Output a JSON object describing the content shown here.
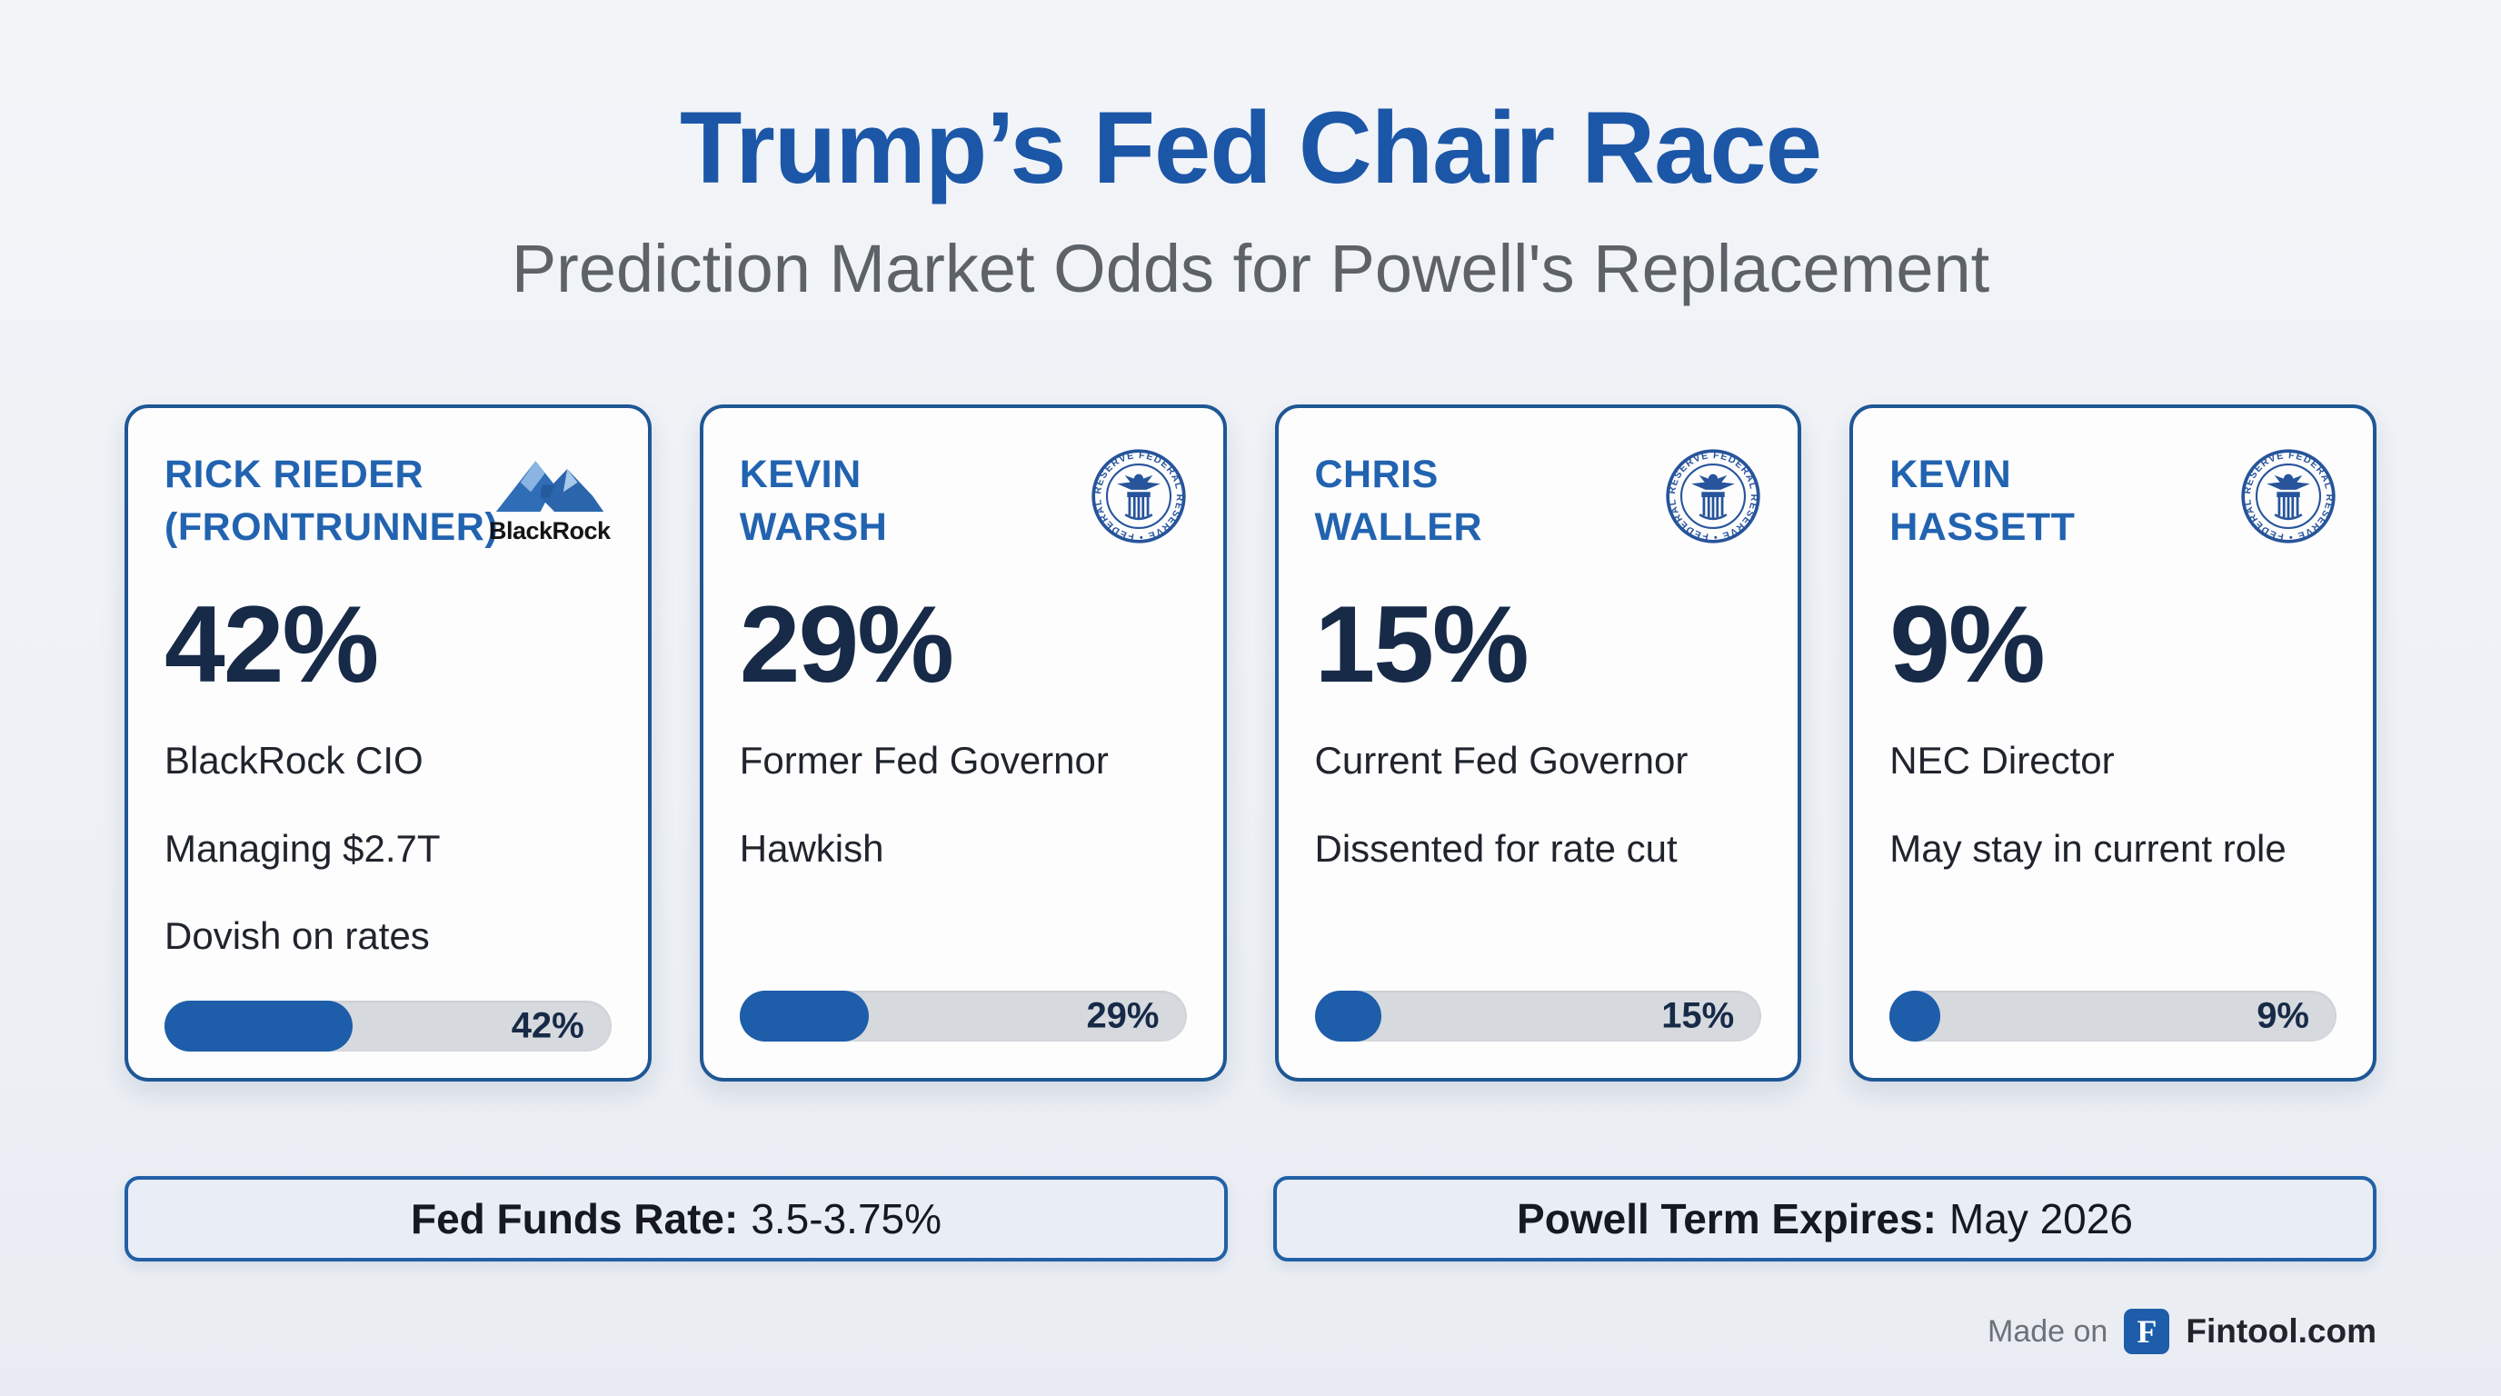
{
  "header": {
    "title": "Trump’s Fed Chair Race",
    "subtitle": "Prediction Market Odds for Powell's Replacement"
  },
  "cards": [
    {
      "name_lines": [
        "RICK RIEDER",
        "(FRONTRUNNER)"
      ],
      "logo": "blackrock",
      "logo_text": "BlackRock",
      "percent": "42%",
      "percent_value": 42,
      "details": [
        "BlackRock CIO",
        "Managing $2.7T",
        "Dovish on rates"
      ],
      "bar_label": "42%"
    },
    {
      "name_lines": [
        "KEVIN",
        "WARSH"
      ],
      "logo": "federal-reserve-seal",
      "percent": "29%",
      "percent_value": 29,
      "details": [
        "Former Fed Governor",
        "Hawkish"
      ],
      "bar_label": "29%"
    },
    {
      "name_lines": [
        "CHRIS",
        "WALLER"
      ],
      "logo": "federal-reserve-seal",
      "percent": "15%",
      "percent_value": 15,
      "details": [
        "Current Fed Governor",
        "Dissented for rate cut"
      ],
      "bar_label": "15%"
    },
    {
      "name_lines": [
        "KEVIN",
        "HASSETT"
      ],
      "logo": "federal-reserve-seal",
      "percent": "9%",
      "percent_value": 9,
      "details": [
        "NEC Director",
        "May stay in current role"
      ],
      "bar_label": "9%"
    }
  ],
  "seal": {
    "ring_text": "FEDERAL RESERVE • FEDERAL RESERVE SYSTEM •"
  },
  "footnotes": [
    {
      "label": "Fed Funds Rate:",
      "value": "3.5-3.75%"
    },
    {
      "label": "Powell Term Expires:",
      "value": "May 2026"
    }
  ],
  "footer": {
    "made_on": "Made on",
    "badge_letter": "F",
    "brand": "Fintool.com"
  },
  "colors": {
    "title_blue": "#1c56a7",
    "name_blue": "#2263b0",
    "navy": "#172a47",
    "card_border": "#1f5795",
    "bar_fill": "#1d5da9",
    "bar_track": "#d6d9de",
    "note_bg": "#e8edf6",
    "note_border": "#2160a6",
    "background": "#eef1f5"
  },
  "chart_data": {
    "type": "bar",
    "title": "Trump’s Fed Chair Race",
    "subtitle": "Prediction Market Odds for Powell's Replacement",
    "categories": [
      "Rick Rieder (Frontrunner)",
      "Kevin Warsh",
      "Chris Waller",
      "Kevin Hassett"
    ],
    "values": [
      42,
      29,
      15,
      9
    ],
    "unit": "%",
    "xlim": [
      0,
      100
    ],
    "category_notes": [
      "BlackRock CIO; Managing $2.7T; Dovish on rates",
      "Former Fed Governor; Hawkish",
      "Current Fed Governor; Dissented for rate cut",
      "NEC Director; May stay in current role"
    ],
    "annotations": [
      "Fed Funds Rate: 3.5-3.75%",
      "Powell Term Expires: May 2026"
    ]
  }
}
